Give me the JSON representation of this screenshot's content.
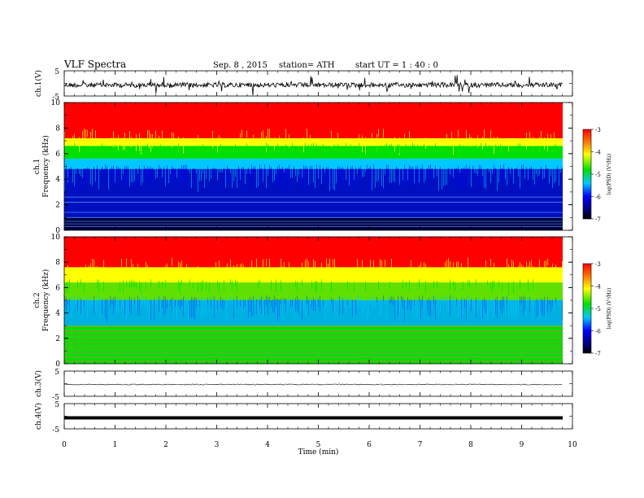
{
  "header": {
    "title": "VLF  Spectra",
    "date": "Sep. 8  , 2015",
    "station": "station= ATH",
    "start": "start  UT  =   1 : 40 : 0"
  },
  "chart_data": [
    {
      "type": "line",
      "panel": "ch1-waveform",
      "ylabel": "ch.1(V)",
      "ylim": [
        -5,
        5
      ],
      "yticks": [
        "5",
        "-5"
      ],
      "x": [
        0,
        9.8
      ],
      "values": [
        0,
        0
      ],
      "description_color": "#000000"
    },
    {
      "type": "heatmap",
      "panel": "ch1-spectrogram",
      "ylabel": "ch.1\nFrequency  (kHz)",
      "ylim": [
        0,
        10
      ],
      "yticks": [
        "0",
        "2",
        "4",
        "6",
        "8",
        "10"
      ],
      "xlim": [
        0,
        9.8
      ],
      "boundaries_khz": {
        "red_above": 7.2,
        "yellow_above": 6.6,
        "green_above": 5.6,
        "cyan_above": 4.8,
        "blue_above": 1.0
      },
      "colorbar": {
        "label": "log(PSD) (V²/Hz)",
        "ticks": [
          "-3",
          "-4",
          "-5",
          "-6",
          "-7"
        ],
        "range": [
          -7,
          -3
        ]
      }
    },
    {
      "type": "heatmap",
      "panel": "ch2-spectrogram",
      "ylabel": "ch.2\nFrequency  (kHz)",
      "ylim": [
        0,
        10
      ],
      "yticks": [
        "0",
        "2",
        "4",
        "6",
        "8",
        "10"
      ],
      "xlim": [
        0,
        9.8
      ],
      "boundaries_khz": {
        "red_above": 7.6,
        "yellow_above": 6.4,
        "green_above": 5.0,
        "blue_above": 3.0
      },
      "colorbar": {
        "label": "log(PSD) (V²/Hz)",
        "ticks": [
          "-3",
          "-4",
          "-5",
          "-6",
          "-7"
        ],
        "range": [
          -7,
          -3
        ]
      }
    },
    {
      "type": "line",
      "panel": "ch3-waveform",
      "ylabel": "ch.3(V)",
      "ylim": [
        -5,
        5
      ],
      "yticks": [
        "5",
        "-5"
      ],
      "x": [
        0,
        9.8
      ],
      "values": [
        0,
        0
      ]
    },
    {
      "type": "line",
      "panel": "ch4-waveform",
      "ylabel": "ch.4(V)",
      "ylim": [
        -5,
        5
      ],
      "yticks": [
        "5",
        "-5"
      ],
      "x": [
        0,
        9.8
      ],
      "values": [
        0,
        0
      ]
    }
  ],
  "xaxis": {
    "label": "Time  (min)",
    "xlim": [
      0,
      10
    ],
    "ticks": [
      "0",
      "1",
      "2",
      "3",
      "4",
      "5",
      "6",
      "7",
      "8",
      "9",
      "10"
    ]
  },
  "colors": {
    "dark_blue": "#000040",
    "blue": "#0000ff",
    "cyan": "#00c8ff",
    "green": "#00e000",
    "yellow": "#ffff00",
    "red": "#ff0000"
  }
}
